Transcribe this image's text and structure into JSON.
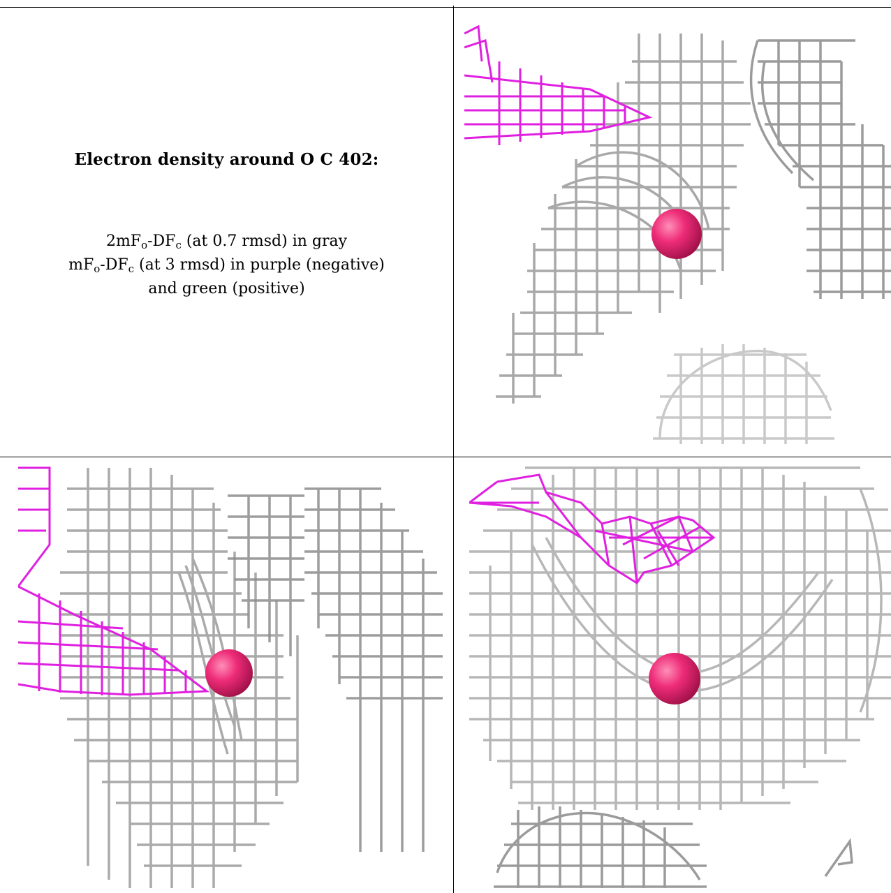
{
  "legend": {
    "title": "Electron density around O C 402:",
    "line1": {
      "a": "2mF",
      "a_sub": "o",
      "b": "-DF",
      "b_sub": "c",
      "c": " (at 0.7 rmsd) in gray"
    },
    "line2": {
      "a": "mF",
      "a_sub": "o",
      "b": "-DF",
      "b_sub": "c",
      "c": " (at 3 rmsd) in purple (negative)"
    },
    "line3": "and green (positive)"
  },
  "colors": {
    "gray_map": "#b8b8b8",
    "dark_gray": "#6a6a6a",
    "negative_map": "#e020e0",
    "atom": "#ee2c78",
    "border": "#000000"
  },
  "panels": [
    {
      "name": "view-top-right",
      "content": "mesh-with-oxygen-atom"
    },
    {
      "name": "view-bottom-left",
      "content": "mesh-with-oxygen-atom"
    },
    {
      "name": "view-bottom-right",
      "content": "mesh-with-oxygen-atom"
    }
  ]
}
